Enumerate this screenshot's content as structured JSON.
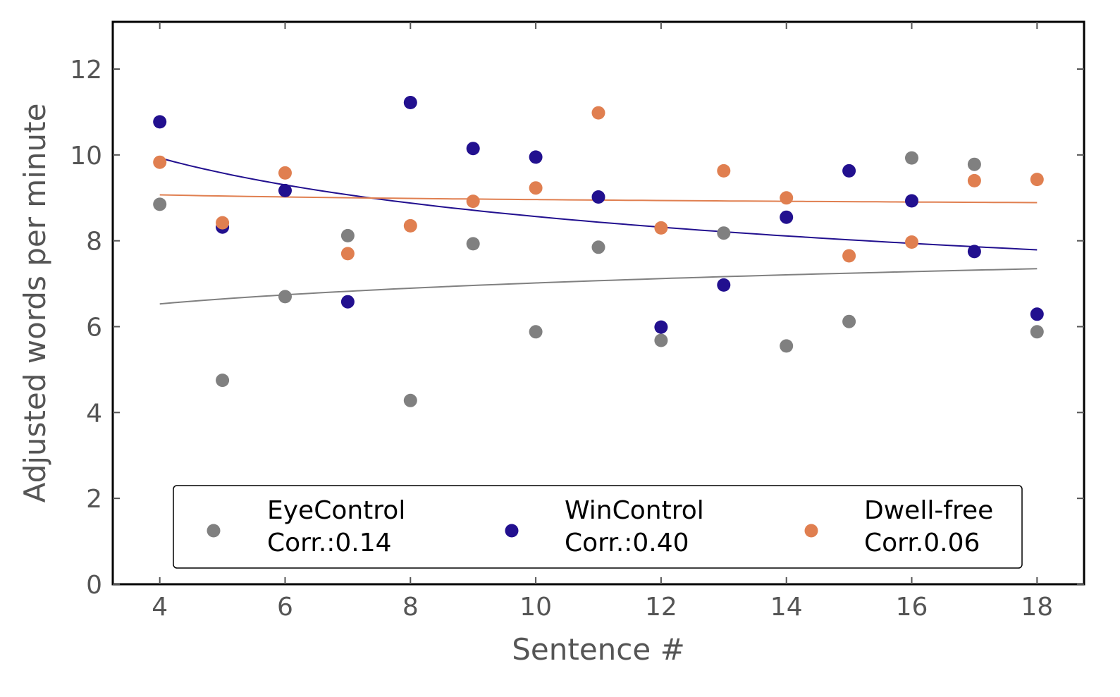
{
  "chart_data": {
    "type": "scatter",
    "xlabel": "Sentence #",
    "ylabel": "Adjusted words per minute",
    "xlim": [
      3.25,
      18.75
    ],
    "ylim": [
      0,
      13.1
    ],
    "xticks": [
      4,
      6,
      8,
      10,
      12,
      14,
      16,
      18
    ],
    "yticks": [
      0,
      2,
      4,
      6,
      8,
      10,
      12
    ],
    "grid": false,
    "legend_position": "bottom-center",
    "series": [
      {
        "name": "EyeControl",
        "legend_line2": "Corr.:0.14",
        "color": "#808080",
        "x": [
          4,
          5,
          6,
          7,
          8,
          9,
          10,
          11,
          12,
          13,
          14,
          15,
          16,
          17,
          18
        ],
        "y": [
          8.85,
          4.75,
          6.7,
          8.12,
          4.28,
          7.93,
          5.88,
          7.85,
          5.68,
          8.18,
          5.55,
          6.12,
          9.93,
          9.78,
          5.88
        ],
        "trend": {
          "x": [
            4,
            18
          ],
          "y_start": 6.53,
          "y_end": 7.35
        }
      },
      {
        "name": "WinControl",
        "legend_line2": "Corr.:0.40",
        "color": "#22108f",
        "x": [
          4,
          5,
          6,
          7,
          8,
          9,
          10,
          11,
          12,
          13,
          14,
          15,
          16,
          17,
          18
        ],
        "y": [
          10.77,
          8.32,
          9.17,
          6.58,
          11.22,
          10.15,
          9.95,
          9.02,
          5.99,
          6.97,
          8.55,
          9.63,
          8.93,
          7.75,
          6.29
        ],
        "trend": {
          "x": [
            4,
            18
          ],
          "y_start": 9.93,
          "y_end": 7.79
        }
      },
      {
        "name": "Dwell-free",
        "legend_line2": "Corr.0.06",
        "color": "#e07f50",
        "x": [
          4,
          5,
          6,
          7,
          8,
          9,
          10,
          11,
          12,
          13,
          14,
          15,
          16,
          17,
          18
        ],
        "y": [
          9.83,
          8.42,
          9.58,
          7.7,
          8.35,
          8.92,
          9.23,
          10.98,
          8.3,
          9.63,
          9.0,
          7.65,
          7.97,
          9.4,
          9.43
        ],
        "trend": {
          "x": [
            4,
            18
          ],
          "y_start": 9.07,
          "y_end": 8.89
        }
      }
    ]
  }
}
